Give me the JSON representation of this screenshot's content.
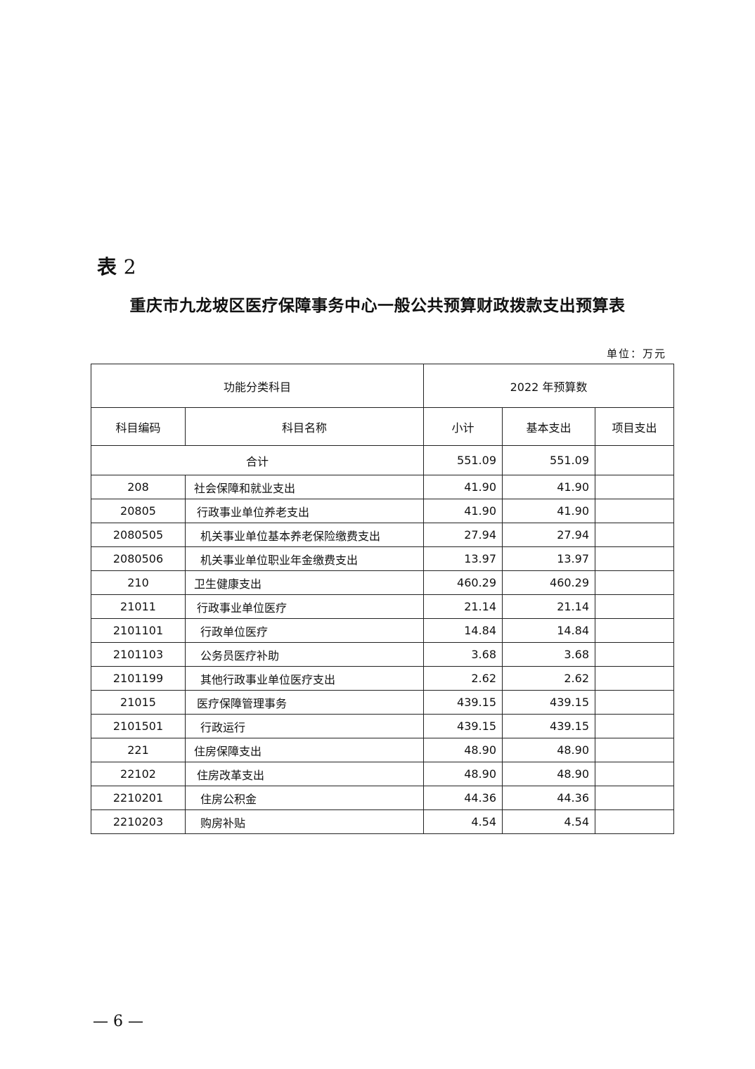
{
  "table_label": {
    "prefix": "表",
    "number": "2"
  },
  "title": "重庆市九龙坡区医疗保障事务中心一般公共预算财政拨款支出预算表",
  "unit": "单位：万元",
  "headers": {
    "group_left": "功能分类科目",
    "group_right": "2022 年预算数",
    "code": "科目编码",
    "name": "科目名称",
    "subtotal": "小计",
    "basic": "基本支出",
    "project": "项目支出"
  },
  "total": {
    "label": "合计",
    "subtotal": "551.09",
    "basic": "551.09",
    "project": ""
  },
  "rows": [
    {
      "code": "208",
      "name": "社会保障和就业支出",
      "level": 1,
      "subtotal": "41.90",
      "basic": "41.90",
      "project": ""
    },
    {
      "code": "20805",
      "name": "行政事业单位养老支出",
      "level": 2,
      "subtotal": "41.90",
      "basic": "41.90",
      "project": ""
    },
    {
      "code": "2080505",
      "name": "机关事业单位基本养老保险缴费支出",
      "level": 3,
      "subtotal": "27.94",
      "basic": "27.94",
      "project": ""
    },
    {
      "code": "2080506",
      "name": "机关事业单位职业年金缴费支出",
      "level": 3,
      "subtotal": "13.97",
      "basic": "13.97",
      "project": ""
    },
    {
      "code": "210",
      "name": "卫生健康支出",
      "level": 1,
      "subtotal": "460.29",
      "basic": "460.29",
      "project": ""
    },
    {
      "code": "21011",
      "name": "行政事业单位医疗",
      "level": 2,
      "subtotal": "21.14",
      "basic": "21.14",
      "project": ""
    },
    {
      "code": "2101101",
      "name": "行政单位医疗",
      "level": 3,
      "subtotal": "14.84",
      "basic": "14.84",
      "project": ""
    },
    {
      "code": "2101103",
      "name": "公务员医疗补助",
      "level": 3,
      "subtotal": "3.68",
      "basic": "3.68",
      "project": ""
    },
    {
      "code": "2101199",
      "name": "其他行政事业单位医疗支出",
      "level": 3,
      "subtotal": "2.62",
      "basic": "2.62",
      "project": ""
    },
    {
      "code": "21015",
      "name": "医疗保障管理事务",
      "level": 2,
      "subtotal": "439.15",
      "basic": "439.15",
      "project": ""
    },
    {
      "code": "2101501",
      "name": "行政运行",
      "level": 3,
      "subtotal": "439.15",
      "basic": "439.15",
      "project": ""
    },
    {
      "code": "221",
      "name": "住房保障支出",
      "level": 1,
      "subtotal": "48.90",
      "basic": "48.90",
      "project": ""
    },
    {
      "code": "22102",
      "name": "住房改革支出",
      "level": 2,
      "subtotal": "48.90",
      "basic": "48.90",
      "project": ""
    },
    {
      "code": "2210201",
      "name": "住房公积金",
      "level": 3,
      "subtotal": "44.36",
      "basic": "44.36",
      "project": ""
    },
    {
      "code": "2210203",
      "name": "购房补贴",
      "level": 3,
      "subtotal": "4.54",
      "basic": "4.54",
      "project": ""
    }
  ],
  "page_number": "— 6 —"
}
